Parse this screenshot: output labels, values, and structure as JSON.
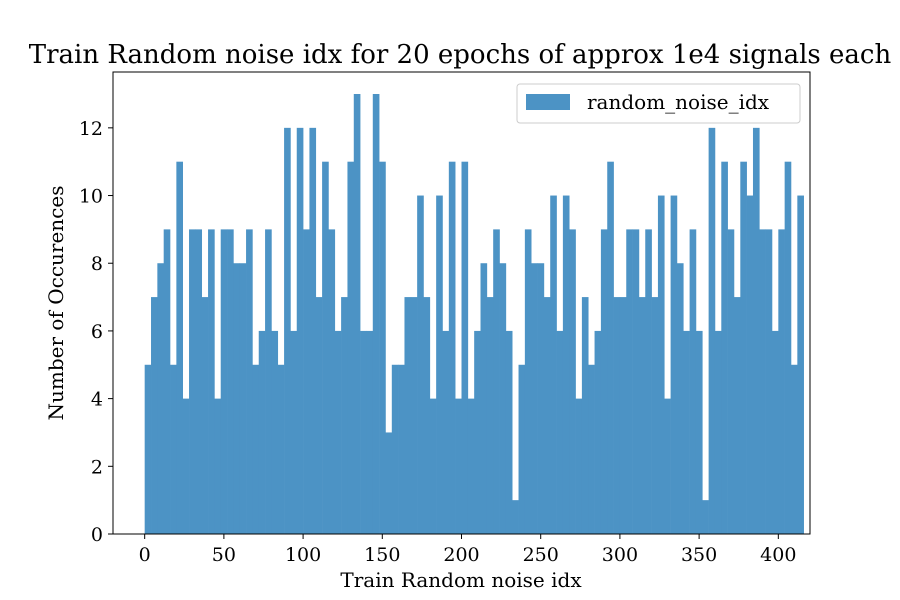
{
  "chart_data": {
    "type": "bar",
    "title": "Train Random noise idx for 20 epochs of approx 1e4 signals each",
    "xlabel": "Train Random noise idx",
    "ylabel": "Number of Occurences",
    "xlim": [
      -20,
      420
    ],
    "ylim": [
      0,
      13.65
    ],
    "xticks": [
      0,
      50,
      100,
      150,
      200,
      250,
      300,
      350,
      400
    ],
    "yticks": [
      0,
      2,
      4,
      6,
      8,
      10,
      12
    ],
    "bin_start": 0,
    "bin_width": 4,
    "series": [
      {
        "name": "random_noise_idx",
        "color": "#4c93c5",
        "values": [
          5,
          7,
          8,
          9,
          5,
          11,
          4,
          9,
          9,
          7,
          9,
          4,
          9,
          9,
          8,
          8,
          9,
          5,
          6,
          9,
          6,
          5,
          12,
          6,
          12,
          9,
          12,
          7,
          11,
          9,
          6,
          7,
          11,
          13,
          6,
          6,
          13,
          11,
          3,
          5,
          5,
          7,
          7,
          10,
          7,
          4,
          10,
          6,
          11,
          4,
          11,
          4,
          6,
          8,
          7,
          9,
          8,
          6,
          1,
          5,
          9,
          8,
          8,
          7,
          10,
          6,
          10,
          9,
          4,
          7,
          5,
          6,
          9,
          11,
          7,
          7,
          9,
          9,
          7,
          9,
          7,
          10,
          4,
          10,
          8,
          6,
          9,
          6,
          1,
          12,
          6,
          11,
          9,
          7,
          11,
          10,
          12,
          9,
          9,
          6,
          9,
          11,
          5,
          10
        ]
      }
    ],
    "legend": {
      "position": "upper right"
    }
  }
}
